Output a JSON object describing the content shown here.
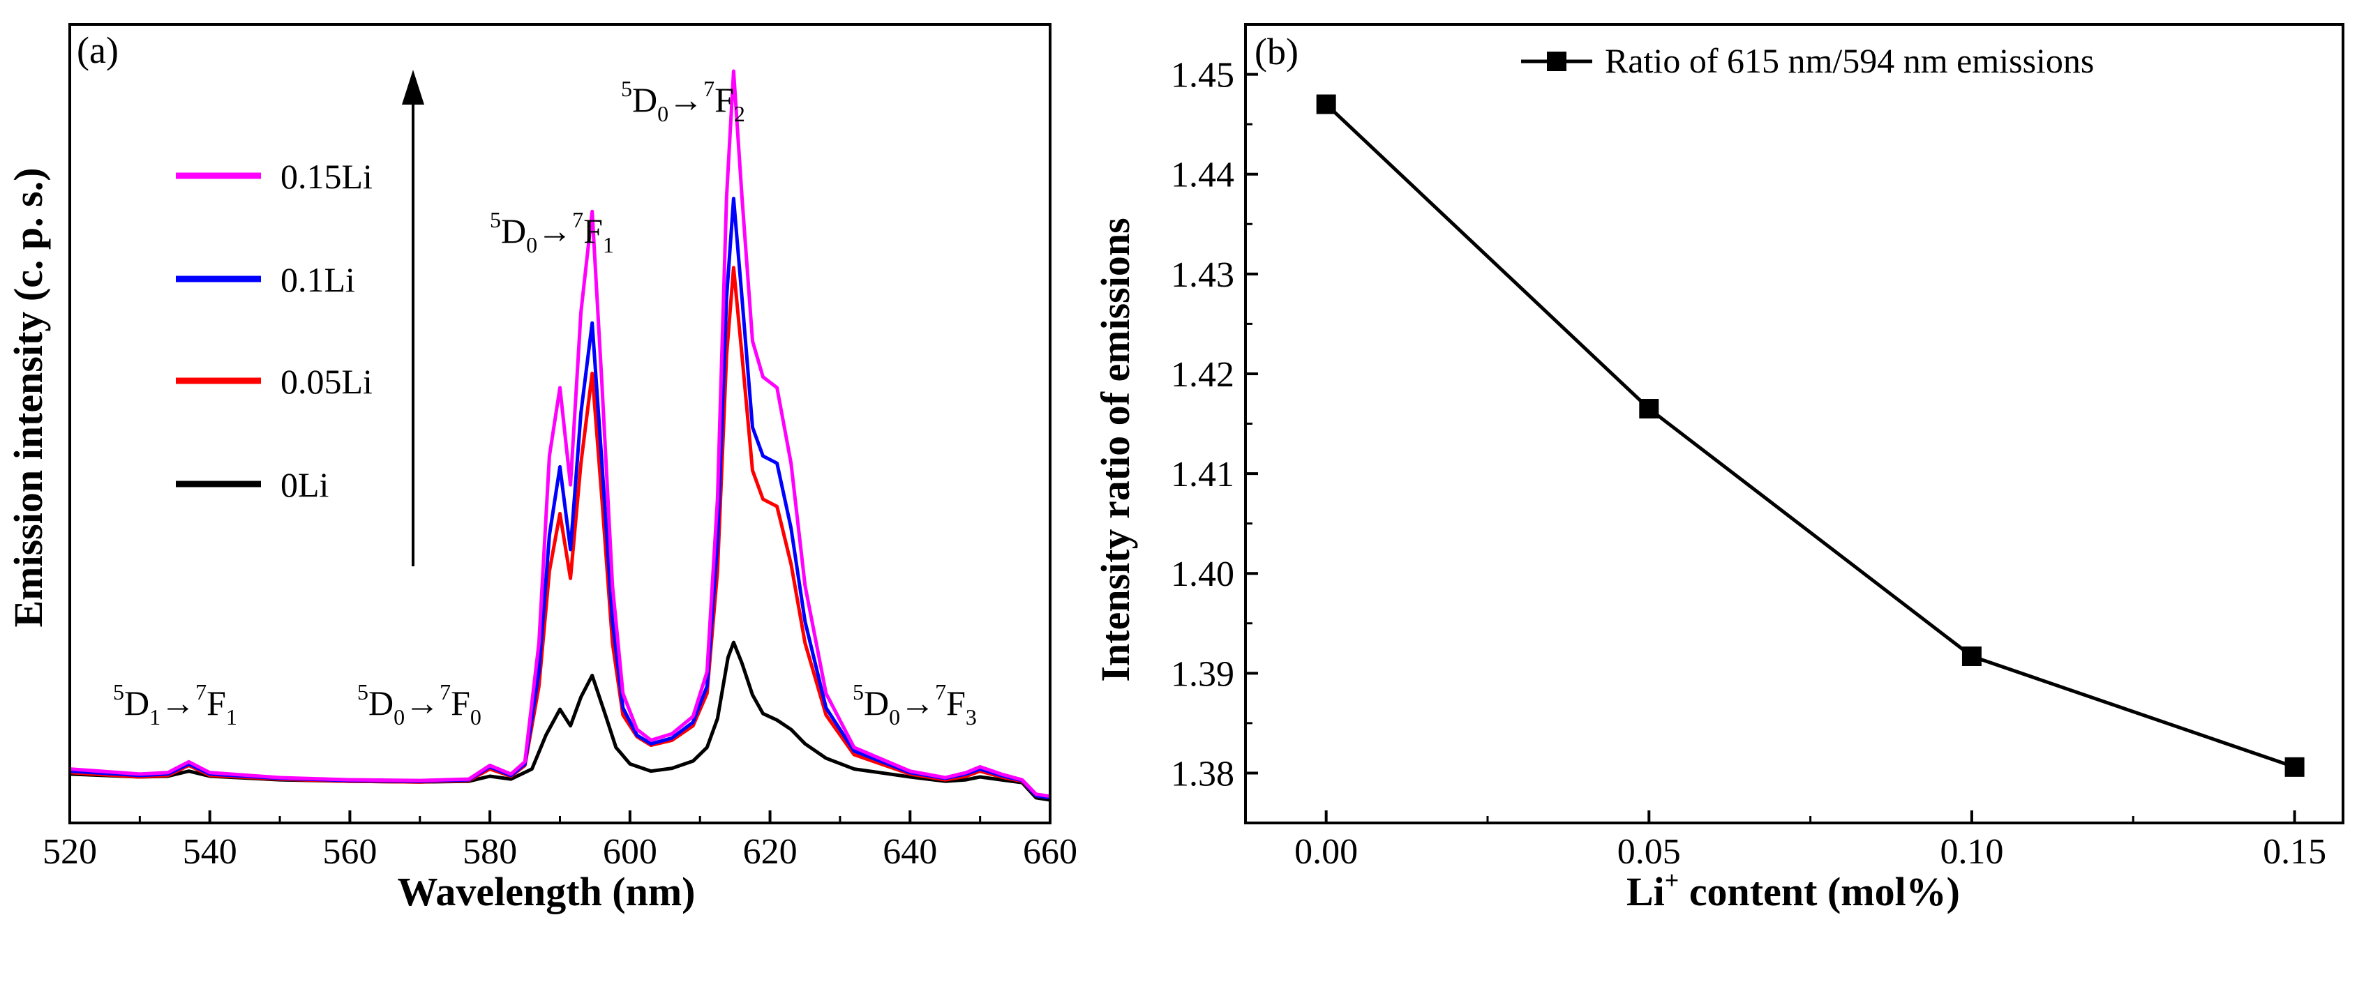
{
  "chart_data": [
    {
      "type": "line",
      "panel_label": "(a)",
      "xlabel": "Wavelength (nm)",
      "ylabel": "Emission intensity (c. p. s.)",
      "xlim": [
        520,
        660
      ],
      "ylim": [
        -0.05,
        1.06
      ],
      "xticks": [
        "520",
        "540",
        "560",
        "580",
        "600",
        "620",
        "640",
        "660"
      ],
      "series": [
        {
          "name": "0Li",
          "color": "#000000",
          "points": [
            [
              520,
              0.018
            ],
            [
              530,
              0.014
            ],
            [
              534,
              0.015
            ],
            [
              537,
              0.022
            ],
            [
              540,
              0.015
            ],
            [
              550,
              0.01
            ],
            [
              560,
              0.008
            ],
            [
              570,
              0.007
            ],
            [
              577,
              0.008
            ],
            [
              580,
              0.015
            ],
            [
              583,
              0.011
            ],
            [
              586,
              0.025
            ],
            [
              588,
              0.072
            ],
            [
              590,
              0.108
            ],
            [
              591.5,
              0.085
            ],
            [
              593,
              0.125
            ],
            [
              594.6,
              0.155
            ],
            [
              596.5,
              0.1
            ],
            [
              598,
              0.055
            ],
            [
              600,
              0.032
            ],
            [
              603,
              0.022
            ],
            [
              606,
              0.026
            ],
            [
              609,
              0.036
            ],
            [
              611,
              0.055
            ],
            [
              612.5,
              0.095
            ],
            [
              614,
              0.18
            ],
            [
              614.8,
              0.201
            ],
            [
              616,
              0.172
            ],
            [
              617.5,
              0.128
            ],
            [
              619,
              0.102
            ],
            [
              621,
              0.093
            ],
            [
              623,
              0.08
            ],
            [
              625,
              0.06
            ],
            [
              628,
              0.04
            ],
            [
              632,
              0.025
            ],
            [
              640,
              0.014
            ],
            [
              645,
              0.008
            ],
            [
              648,
              0.01
            ],
            [
              650,
              0.014
            ],
            [
              653,
              0.01
            ],
            [
              656,
              0.006
            ],
            [
              658,
              -0.015
            ],
            [
              660,
              -0.018
            ]
          ]
        },
        {
          "name": "0.05Li",
          "color": "#ff0000",
          "points": [
            [
              520,
              0.02
            ],
            [
              530,
              0.014
            ],
            [
              534,
              0.016
            ],
            [
              537,
              0.03
            ],
            [
              540,
              0.016
            ],
            [
              550,
              0.011
            ],
            [
              560,
              0.008
            ],
            [
              570,
              0.007
            ],
            [
              577,
              0.009
            ],
            [
              580,
              0.025
            ],
            [
              583,
              0.015
            ],
            [
              585,
              0.03
            ],
            [
              587,
              0.14
            ],
            [
              588.5,
              0.3
            ],
            [
              590,
              0.38
            ],
            [
              591.5,
              0.29
            ],
            [
              593,
              0.45
            ],
            [
              594.6,
              0.575
            ],
            [
              596,
              0.4
            ],
            [
              597.5,
              0.2
            ],
            [
              599,
              0.1
            ],
            [
              601,
              0.07
            ],
            [
              603,
              0.058
            ],
            [
              606,
              0.065
            ],
            [
              609,
              0.085
            ],
            [
              611,
              0.13
            ],
            [
              612.5,
              0.3
            ],
            [
              613.8,
              0.6
            ],
            [
              614.8,
              0.722
            ],
            [
              616,
              0.6
            ],
            [
              617.5,
              0.44
            ],
            [
              619,
              0.4
            ],
            [
              621,
              0.39
            ],
            [
              623,
              0.31
            ],
            [
              625,
              0.2
            ],
            [
              628,
              0.1
            ],
            [
              632,
              0.045
            ],
            [
              640,
              0.018
            ],
            [
              645,
              0.01
            ],
            [
              648,
              0.015
            ],
            [
              650,
              0.022
            ],
            [
              653,
              0.014
            ],
            [
              656,
              0.008
            ],
            [
              658,
              -0.012
            ],
            [
              660,
              -0.015
            ]
          ]
        },
        {
          "name": "0.1Li",
          "color": "#0000ff",
          "points": [
            [
              520,
              0.022
            ],
            [
              530,
              0.016
            ],
            [
              534,
              0.018
            ],
            [
              537,
              0.032
            ],
            [
              540,
              0.018
            ],
            [
              550,
              0.012
            ],
            [
              560,
              0.009
            ],
            [
              570,
              0.008
            ],
            [
              577,
              0.01
            ],
            [
              580,
              0.028
            ],
            [
              583,
              0.016
            ],
            [
              585,
              0.032
            ],
            [
              587,
              0.16
            ],
            [
              588.5,
              0.35
            ],
            [
              590,
              0.445
            ],
            [
              591.5,
              0.33
            ],
            [
              593,
              0.52
            ],
            [
              594.6,
              0.645
            ],
            [
              596,
              0.45
            ],
            [
              597.5,
              0.23
            ],
            [
              599,
              0.11
            ],
            [
              601,
              0.072
            ],
            [
              603,
              0.06
            ],
            [
              606,
              0.068
            ],
            [
              609,
              0.09
            ],
            [
              611,
              0.14
            ],
            [
              612.5,
              0.34
            ],
            [
              613.8,
              0.68
            ],
            [
              614.8,
              0.818
            ],
            [
              616,
              0.68
            ],
            [
              617.5,
              0.5
            ],
            [
              619,
              0.46
            ],
            [
              621,
              0.45
            ],
            [
              623,
              0.36
            ],
            [
              625,
              0.23
            ],
            [
              628,
              0.11
            ],
            [
              632,
              0.05
            ],
            [
              640,
              0.02
            ],
            [
              645,
              0.012
            ],
            [
              648,
              0.018
            ],
            [
              650,
              0.025
            ],
            [
              653,
              0.016
            ],
            [
              656,
              0.009
            ],
            [
              658,
              -0.012
            ],
            [
              660,
              -0.015
            ]
          ]
        },
        {
          "name": "0.15Li",
          "color": "#ff00ff",
          "points": [
            [
              520,
              0.025
            ],
            [
              530,
              0.018
            ],
            [
              534,
              0.02
            ],
            [
              537,
              0.035
            ],
            [
              540,
              0.02
            ],
            [
              550,
              0.013
            ],
            [
              560,
              0.01
            ],
            [
              570,
              0.009
            ],
            [
              577,
              0.011
            ],
            [
              580,
              0.03
            ],
            [
              583,
              0.018
            ],
            [
              585,
              0.035
            ],
            [
              587,
              0.2
            ],
            [
              588.5,
              0.46
            ],
            [
              590,
              0.555
            ],
            [
              591.5,
              0.42
            ],
            [
              593,
              0.66
            ],
            [
              594.6,
              0.8
            ],
            [
              596,
              0.56
            ],
            [
              597.5,
              0.28
            ],
            [
              599,
              0.13
            ],
            [
              601,
              0.08
            ],
            [
              603,
              0.065
            ],
            [
              606,
              0.074
            ],
            [
              609,
              0.098
            ],
            [
              611,
              0.16
            ],
            [
              612.5,
              0.4
            ],
            [
              613.8,
              0.82
            ],
            [
              614.8,
              0.995
            ],
            [
              616,
              0.82
            ],
            [
              617.5,
              0.62
            ],
            [
              619,
              0.57
            ],
            [
              621,
              0.555
            ],
            [
              623,
              0.45
            ],
            [
              625,
              0.28
            ],
            [
              628,
              0.13
            ],
            [
              632,
              0.055
            ],
            [
              640,
              0.022
            ],
            [
              645,
              0.013
            ],
            [
              648,
              0.02
            ],
            [
              650,
              0.028
            ],
            [
              653,
              0.018
            ],
            [
              656,
              0.01
            ],
            [
              658,
              -0.01
            ],
            [
              660,
              -0.013
            ]
          ]
        }
      ],
      "legend": [
        "0.15Li",
        "0.1Li",
        "0.05Li",
        "0Li"
      ],
      "legend_position": "upper-left",
      "arrow_annotation": "increasing Li content",
      "annotations": [
        {
          "upper": "5",
          "first": "D",
          "first_sub": "1",
          "upper2": "7",
          "second": "F",
          "second_sub": "1"
        },
        {
          "upper": "5",
          "first": "D",
          "first_sub": "0",
          "upper2": "7",
          "second": "F",
          "second_sub": "0"
        },
        {
          "upper": "5",
          "first": "D",
          "first_sub": "0",
          "upper2": "7",
          "second": "F",
          "second_sub": "1"
        },
        {
          "upper": "5",
          "first": "D",
          "first_sub": "0",
          "upper2": "7",
          "second": "F",
          "second_sub": "2"
        },
        {
          "upper": "5",
          "first": "D",
          "first_sub": "0",
          "upper2": "7",
          "second": "F",
          "second_sub": "3"
        }
      ],
      "arrow_symbol": "→"
    },
    {
      "type": "line",
      "panel_label": "(b)",
      "xlabel_main": "Li",
      "xlabel_sup": "+",
      "xlabel_rest": " content (mol%)",
      "ylabel": "Intensity ratio of emissions",
      "xlim": [
        -0.0125,
        0.1575
      ],
      "ylim": [
        1.375,
        1.455
      ],
      "xticks": [
        "0.00",
        "0.05",
        "0.10",
        "0.15"
      ],
      "yticks": [
        "1.38",
        "1.39",
        "1.40",
        "1.41",
        "1.42",
        "1.43",
        "1.44",
        "1.45"
      ],
      "series": [
        {
          "name": "Ratio of 615 nm/594 nm emissions",
          "color": "#000000",
          "marker": "square",
          "x": [
            0.0,
            0.05,
            0.1,
            0.15
          ],
          "y": [
            1.447,
            1.4165,
            1.3917,
            1.3806
          ]
        }
      ],
      "legend_position": "top-right"
    }
  ]
}
